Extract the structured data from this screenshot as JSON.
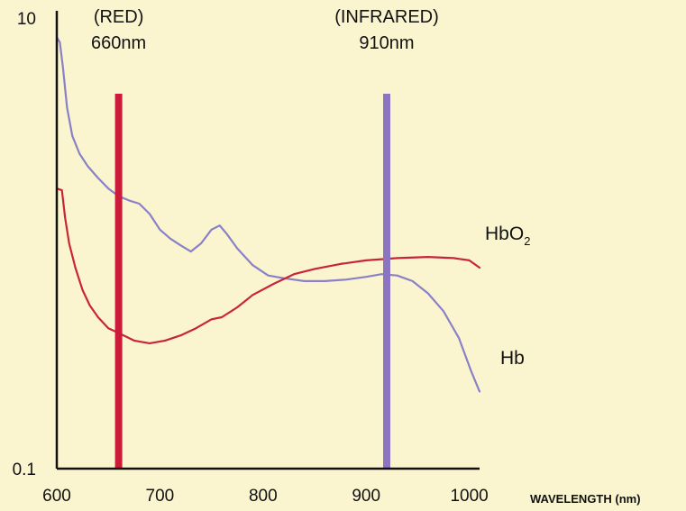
{
  "chart_data": {
    "type": "line",
    "title": "",
    "xlabel": "WAVELENGTH (nm)",
    "ylabel": "",
    "xlim": [
      600,
      1010
    ],
    "ylim": [
      0.1,
      10
    ],
    "yscale": "log",
    "x_ticks": [
      "600",
      "700",
      "800",
      "900",
      "1000"
    ],
    "y_ticks": [
      "0.1",
      "10"
    ],
    "grid": false,
    "legend": "none",
    "annotations": [
      {
        "line1": "(RED)",
        "line2": "660nm",
        "x": 660,
        "color": "#cc1a3a"
      },
      {
        "line1": "(INFRARED)",
        "line2": "910nm",
        "x": 920,
        "color": "#8b75c2"
      }
    ],
    "series": [
      {
        "name": "Hb",
        "color": "#8a80c8",
        "points": [
          [
            600,
            8.2
          ],
          [
            603,
            7.8
          ],
          [
            606,
            6.0
          ],
          [
            610,
            4.0
          ],
          [
            615,
            3.0
          ],
          [
            622,
            2.5
          ],
          [
            630,
            2.2
          ],
          [
            640,
            1.95
          ],
          [
            650,
            1.75
          ],
          [
            660,
            1.62
          ],
          [
            670,
            1.55
          ],
          [
            680,
            1.5
          ],
          [
            690,
            1.35
          ],
          [
            700,
            1.15
          ],
          [
            710,
            1.05
          ],
          [
            720,
            0.98
          ],
          [
            730,
            0.92
          ],
          [
            740,
            1.0
          ],
          [
            750,
            1.15
          ],
          [
            758,
            1.2
          ],
          [
            765,
            1.1
          ],
          [
            775,
            0.95
          ],
          [
            790,
            0.8
          ],
          [
            805,
            0.72
          ],
          [
            820,
            0.7
          ],
          [
            840,
            0.68
          ],
          [
            860,
            0.68
          ],
          [
            880,
            0.69
          ],
          [
            900,
            0.71
          ],
          [
            915,
            0.73
          ],
          [
            930,
            0.72
          ],
          [
            945,
            0.68
          ],
          [
            960,
            0.6
          ],
          [
            975,
            0.5
          ],
          [
            990,
            0.38
          ],
          [
            1002,
            0.27
          ],
          [
            1010,
            0.22
          ]
        ]
      },
      {
        "name": "HbO2",
        "color": "#c8243a",
        "points": [
          [
            600,
            1.75
          ],
          [
            605,
            1.72
          ],
          [
            608,
            1.3
          ],
          [
            612,
            1.0
          ],
          [
            618,
            0.78
          ],
          [
            625,
            0.62
          ],
          [
            632,
            0.53
          ],
          [
            640,
            0.47
          ],
          [
            650,
            0.42
          ],
          [
            660,
            0.4
          ],
          [
            675,
            0.37
          ],
          [
            690,
            0.36
          ],
          [
            705,
            0.37
          ],
          [
            720,
            0.39
          ],
          [
            735,
            0.42
          ],
          [
            750,
            0.46
          ],
          [
            760,
            0.47
          ],
          [
            775,
            0.52
          ],
          [
            790,
            0.59
          ],
          [
            810,
            0.66
          ],
          [
            830,
            0.73
          ],
          [
            850,
            0.77
          ],
          [
            875,
            0.81
          ],
          [
            900,
            0.84
          ],
          [
            930,
            0.86
          ],
          [
            960,
            0.87
          ],
          [
            985,
            0.86
          ],
          [
            1000,
            0.84
          ],
          [
            1010,
            0.78
          ]
        ]
      }
    ]
  },
  "series_labels": {
    "hbo2_main": "HbO",
    "hbo2_sub": "2",
    "hb": "Hb"
  }
}
